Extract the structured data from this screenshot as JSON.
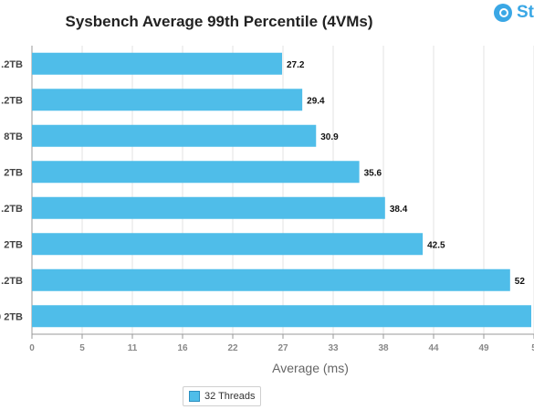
{
  "chart_data": {
    "type": "bar",
    "orientation": "horizontal",
    "title": "Sysbench Average 99th Percentile (4VMs)",
    "xlabel": "Average (ms)",
    "categories": [
      ".2TB",
      ".2TB",
      "8TB",
      "2TB",
      ".2TB",
      "2TB",
      ".2TB",
      "0 2TB"
    ],
    "series": [
      {
        "name": "32 Threads",
        "values": [
          27.2,
          29.4,
          30.9,
          35.6,
          38.4,
          42.5,
          52,
          55
        ]
      }
    ],
    "data_labels": [
      "27.2",
      "29.4",
      "30.9",
      "35.6",
      "38.4",
      "42.5",
      "52",
      ""
    ],
    "x_ticks": [
      "0",
      "5",
      "11",
      "16",
      "22",
      "27",
      "33",
      "38",
      "44",
      "49",
      "5"
    ],
    "xlim": [
      0,
      54.6
    ],
    "grid": true,
    "legend_position": "bottom",
    "colors": {
      "bar": "#4fbde9",
      "grid": "#e3e3e3",
      "axis": "#999999"
    }
  },
  "brand": {
    "text": "St"
  },
  "legend": {
    "label": "32 Threads"
  }
}
